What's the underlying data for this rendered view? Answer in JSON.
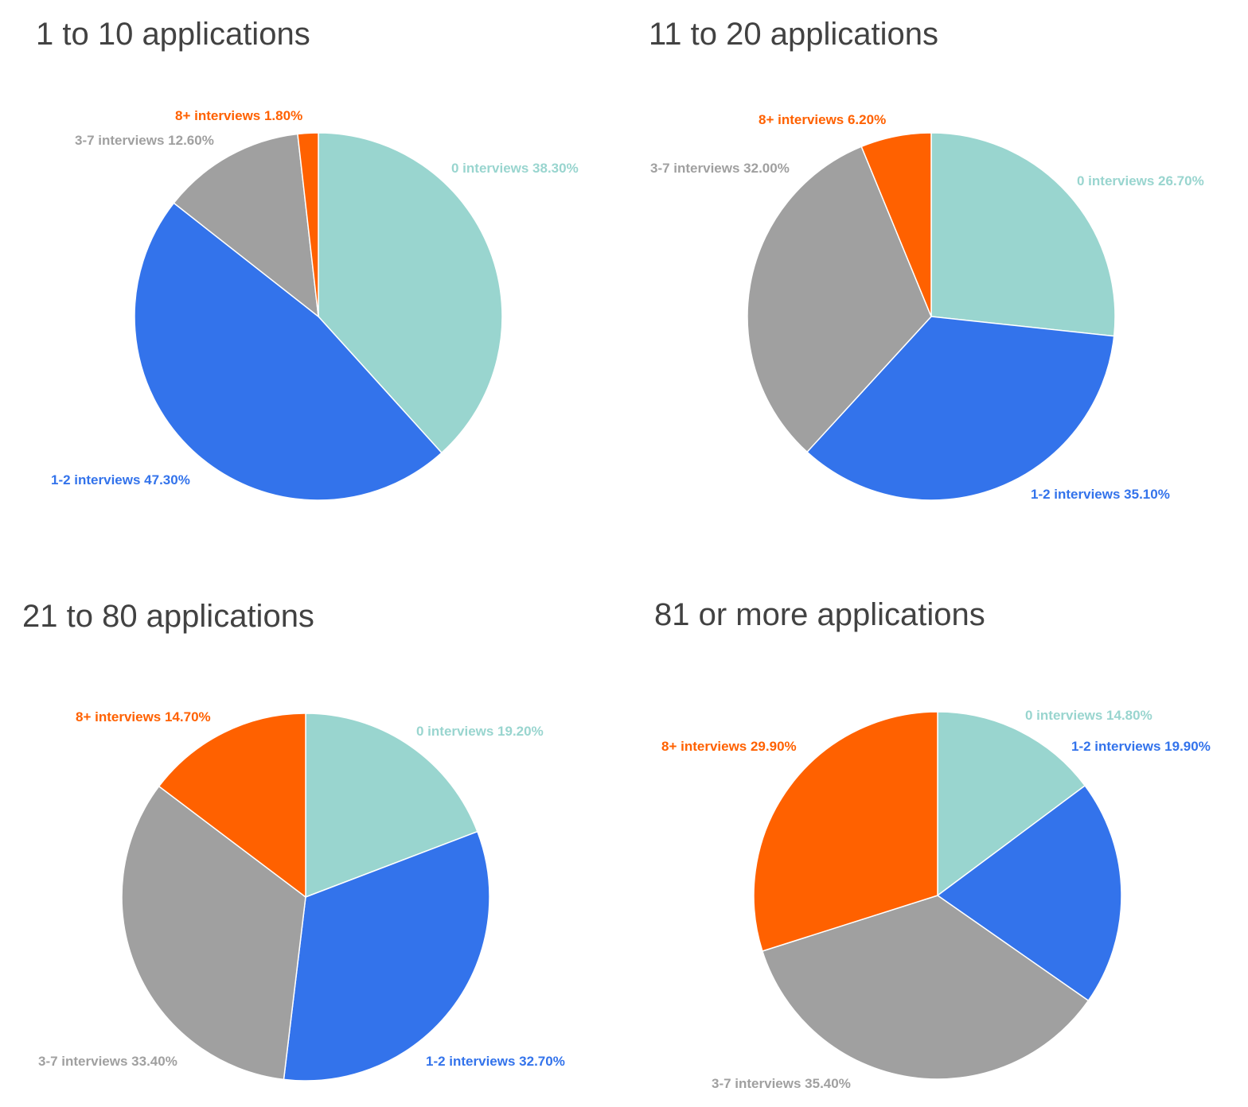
{
  "colors": {
    "0 interviews": "#99d5cf",
    "1-2 interviews": "#3373eb",
    "3-7 interviews": "#a0a0a0",
    "8+ interviews": "#ff6100"
  },
  "chart_data": [
    {
      "type": "pie",
      "title": "1 to 10 applications",
      "categories": [
        "0 interviews",
        "1-2 interviews",
        "3-7 interviews",
        "8+ interviews"
      ],
      "values": [
        38.3,
        47.3,
        12.6,
        1.8
      ],
      "labels": [
        "0 interviews 38.30%",
        "1-2 interviews 47.30%",
        "3-7 interviews 12.60%",
        "8+ interviews 1.80%"
      ]
    },
    {
      "type": "pie",
      "title": "11 to 20 applications",
      "categories": [
        "0 interviews",
        "1-2 interviews",
        "3-7 interviews",
        "8+ interviews"
      ],
      "values": [
        26.7,
        35.1,
        32.0,
        6.2
      ],
      "labels": [
        "0 interviews 26.70%",
        "1-2 interviews 35.10%",
        "3-7 interviews 32.00%",
        "8+ interviews 6.20%"
      ]
    },
    {
      "type": "pie",
      "title": "21 to 80 applications",
      "categories": [
        "0 interviews",
        "1-2 interviews",
        "3-7 interviews",
        "8+ interviews"
      ],
      "values": [
        19.2,
        32.7,
        33.4,
        14.7
      ],
      "labels": [
        "0 interviews 19.20%",
        "1-2 interviews 32.70%",
        "3-7 interviews 33.40%",
        "8+ interviews 14.70%"
      ]
    },
    {
      "type": "pie",
      "title": "81 or more applications",
      "categories": [
        "0 interviews",
        "1-2 interviews",
        "3-7 interviews",
        "8+ interviews"
      ],
      "values": [
        14.8,
        19.9,
        35.4,
        29.9
      ],
      "labels": [
        "0 interviews 14.80%",
        "1-2 interviews 19.90%",
        "3-7 interviews 35.40%",
        "8+ interviews 29.90%"
      ]
    }
  ]
}
